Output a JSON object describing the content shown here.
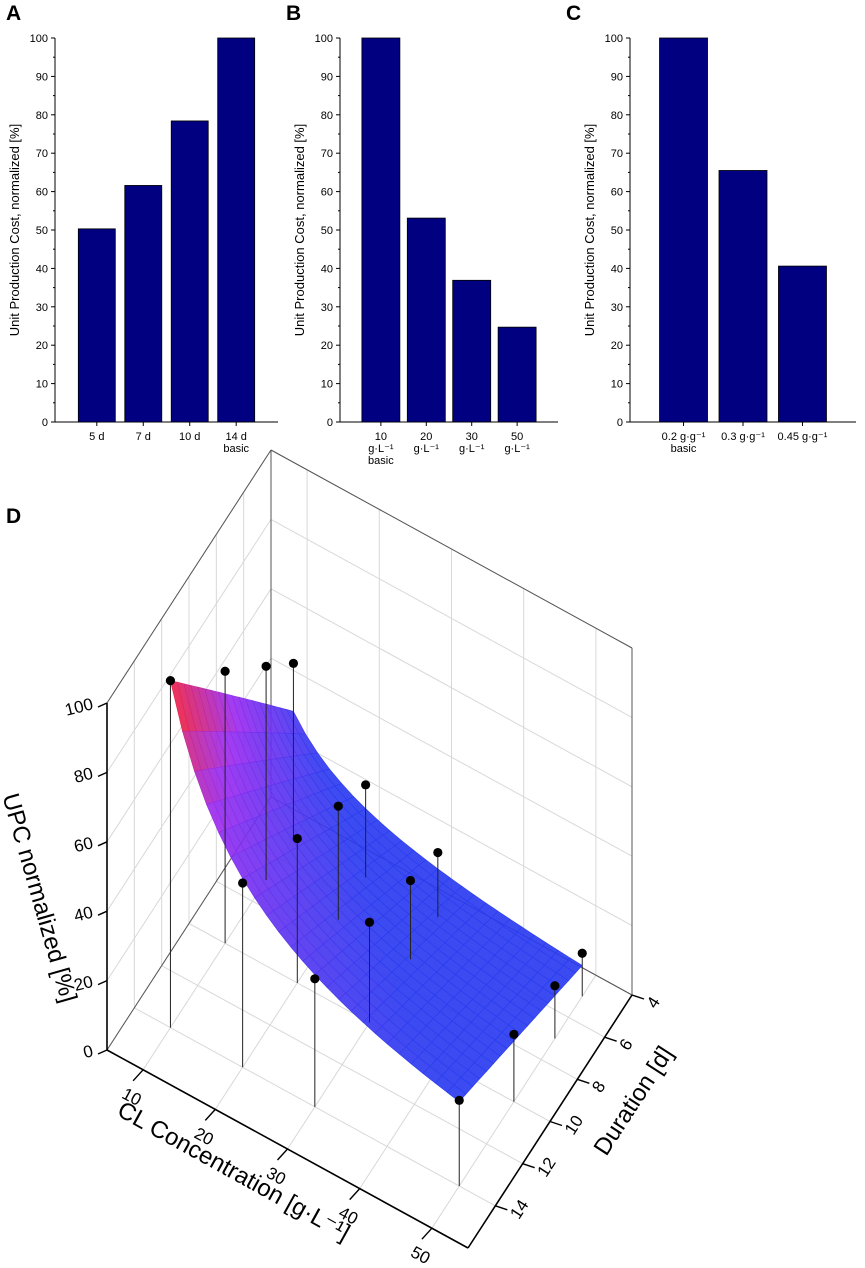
{
  "colors": {
    "bar": "#000080",
    "surface_high": "#ff2020",
    "surface_mid": "#9a2cf0",
    "surface_low": "#2a3cf0",
    "grid": "#d8d8d8",
    "axis": "#000000"
  },
  "chart_data": [
    {
      "panel": "A",
      "type": "bar",
      "title": "",
      "ylabel": "Unit Production Cost, normalized [%]",
      "ylim": [
        0,
        100
      ],
      "yticks": [
        "0",
        "10",
        "20",
        "30",
        "40",
        "50",
        "60",
        "70",
        "80",
        "90",
        "100"
      ],
      "categories": [
        {
          "lines": [
            "5 d"
          ]
        },
        {
          "lines": [
            "7 d"
          ]
        },
        {
          "lines": [
            "10 d"
          ]
        },
        {
          "lines": [
            "14 d",
            "basic"
          ]
        }
      ],
      "values": [
        50.3,
        61.6,
        78.4,
        100
      ]
    },
    {
      "panel": "B",
      "type": "bar",
      "title": "",
      "ylabel": "Unit Production Cost, normalized [%]",
      "ylim": [
        0,
        100
      ],
      "yticks": [
        "0",
        "10",
        "20",
        "30",
        "40",
        "50",
        "60",
        "70",
        "80",
        "90",
        "100"
      ],
      "categories": [
        {
          "lines": [
            "10",
            "g·L⁻¹",
            "basic"
          ]
        },
        {
          "lines": [
            "20",
            "g·L⁻¹"
          ]
        },
        {
          "lines": [
            "30",
            "g·L⁻¹"
          ]
        },
        {
          "lines": [
            "50",
            "g·L⁻¹"
          ]
        }
      ],
      "values": [
        100,
        53.1,
        36.9,
        24.7
      ]
    },
    {
      "panel": "C",
      "type": "bar",
      "title": "",
      "ylabel": "Unit Production Cost, normalized [%]",
      "ylim": [
        0,
        100
      ],
      "yticks": [
        "0",
        "10",
        "20",
        "30",
        "40",
        "50",
        "60",
        "70",
        "80",
        "90",
        "100"
      ],
      "categories": [
        {
          "lines": [
            "0.2 g·g⁻¹",
            "basic"
          ]
        },
        {
          "lines": [
            "0.3 g·g⁻¹"
          ]
        },
        {
          "lines": [
            "0.45 g·g⁻¹"
          ]
        }
      ],
      "values": [
        100,
        65.5,
        40.6
      ]
    },
    {
      "panel": "D",
      "type": "surface3d",
      "zlabel": "UPC normalized [%]",
      "xlabel": "CL Concentration [g·L⁻¹]",
      "ylabel": "Duration [d]",
      "zlim": [
        0,
        100
      ],
      "xlim": [
        5,
        55
      ],
      "ylim": [
        4,
        16
      ],
      "zticks": [
        "0",
        "20",
        "40",
        "60",
        "80",
        "100"
      ],
      "xticks": [
        "10",
        "20",
        "30",
        "40",
        "50"
      ],
      "yticks": [
        "4",
        "6",
        "8",
        "10",
        "12",
        "14"
      ],
      "points": [
        {
          "x": 10,
          "y": 5,
          "z": 50.3
        },
        {
          "x": 10,
          "y": 7,
          "z": 61.6
        },
        {
          "x": 10,
          "y": 10,
          "z": 78.4
        },
        {
          "x": 10,
          "y": 14,
          "z": 100
        },
        {
          "x": 20,
          "y": 5,
          "z": 26.7
        },
        {
          "x": 20,
          "y": 7,
          "z": 32.7
        },
        {
          "x": 20,
          "y": 10,
          "z": 41.6
        },
        {
          "x": 20,
          "y": 14,
          "z": 53.1
        },
        {
          "x": 30,
          "y": 5,
          "z": 18.6
        },
        {
          "x": 30,
          "y": 7,
          "z": 22.7
        },
        {
          "x": 30,
          "y": 10,
          "z": 28.9
        },
        {
          "x": 30,
          "y": 14,
          "z": 36.9
        },
        {
          "x": 50,
          "y": 5,
          "z": 12.4
        },
        {
          "x": 50,
          "y": 7,
          "z": 15.2
        },
        {
          "x": 50,
          "y": 10,
          "z": 19.4
        },
        {
          "x": 50,
          "y": 14,
          "z": 24.7
        }
      ]
    }
  ]
}
